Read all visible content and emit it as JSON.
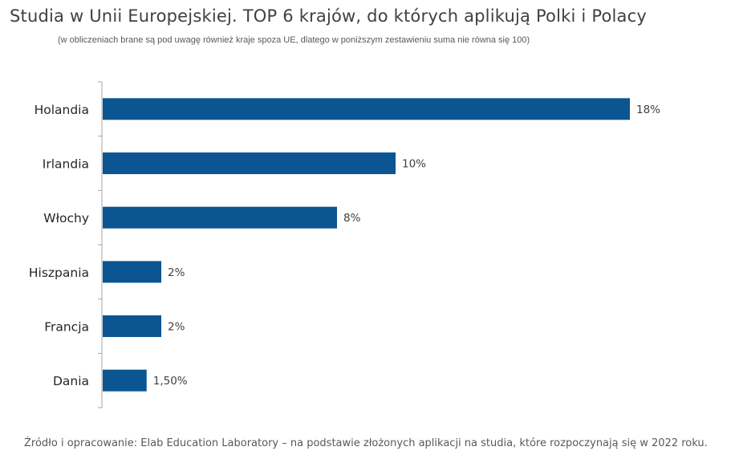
{
  "title": "Studia w Unii Europejskiej. TOP 6 krajów, do których aplikują Polki i Polacy",
  "subtitle": "(w obliczeniach brane są pod uwagę również kraje spoza UE, dlatego w poniższym zestawieniu suma nie równa się 100)",
  "footer": "Źródło i opracowanie: Elab Education Laboratory – na podstawie złożonych aplikacji na studia, które rozpoczynają się w 2022 roku.",
  "colors": {
    "bar": "#0b5592",
    "axis": "#a6a6a6",
    "text": "#404040"
  },
  "chart_data": {
    "type": "bar",
    "orientation": "horizontal",
    "title": "Studia w Unii Europejskiej. TOP 6 krajów, do których aplikują Polki i Polacy",
    "categories": [
      "Holandia",
      "Irlandia",
      "Włochy",
      "Hiszpania",
      "Francja",
      "Dania"
    ],
    "values": [
      18,
      10,
      8,
      2,
      2,
      1.5
    ],
    "data_labels": [
      "18%",
      "10%",
      "8%",
      "2%",
      "2%",
      "1,50%"
    ],
    "unit": "%",
    "xlim": [
      0,
      18
    ],
    "grid": false,
    "legend": "none"
  }
}
